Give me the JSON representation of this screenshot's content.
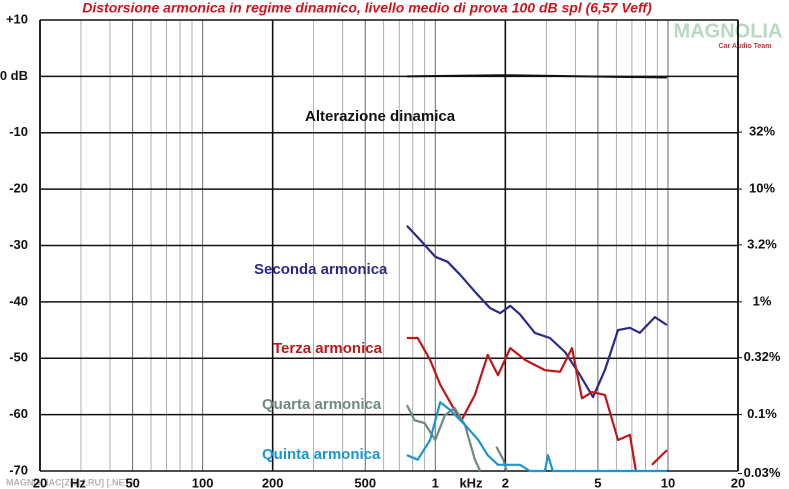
{
  "chart_data": {
    "type": "line",
    "title": "Distorsione armonica in regime dinamico, livello medio di prova 100 dB spl (6,57 Veff)",
    "logo": {
      "name": "MAGNOLIA",
      "tagline": "Car Audio Team"
    },
    "watermark": "MAGNOLIAC[ZG] [.RU] [.NET]",
    "x_units": [
      "Hz",
      "kHz"
    ],
    "xscale": "log",
    "xlim": [
      20,
      20000
    ],
    "xticks": [
      20,
      50,
      100,
      200,
      500,
      {
        "value": 1000,
        "label": "1"
      },
      {
        "value": 2000,
        "label": "2"
      },
      {
        "value": 5000,
        "label": "5"
      },
      {
        "value": 10000,
        "label": "10"
      },
      {
        "value": 20000,
        "label": "20"
      }
    ],
    "xgrid_minor": [
      30,
      40,
      60,
      70,
      80,
      90,
      300,
      400,
      600,
      700,
      800,
      900,
      3000,
      4000,
      6000,
      7000,
      8000,
      9000
    ],
    "ylim": [
      -70,
      10
    ],
    "yticks": [
      {
        "value": 10,
        "label": "+10"
      },
      {
        "value": 0,
        "label": "0 dB"
      },
      -10,
      -20,
      -30,
      -40,
      -50,
      -60,
      -70
    ],
    "y2scale": "log",
    "y2lim": [
      0.0316,
      316
    ],
    "y2ticks": [
      {
        "value": 32,
        "label": "32%"
      },
      {
        "value": 10,
        "label": "10%"
      },
      {
        "value": 3.2,
        "label": "3.2%"
      },
      {
        "value": 1,
        "label": "1%"
      },
      {
        "value": 0.32,
        "label": "0.32%"
      },
      {
        "value": 0.1,
        "label": "0.1%"
      },
      {
        "value": 0.03,
        "label": "0.03%"
      }
    ],
    "grid": true,
    "series": [
      {
        "name": "Alterazione dinamica",
        "color": "#111111",
        "x": [
          755,
          1900,
          9900
        ],
        "values": [
          0,
          0.2,
          -0.2
        ]
      },
      {
        "name": "Seconda armonica",
        "color": "#2b2a8c",
        "x": [
          755,
          860,
          1000,
          1130,
          1280,
          1480,
          1720,
          1900,
          2100,
          2310,
          2680,
          3110,
          3610,
          4190,
          4760,
          5360,
          6100,
          6860,
          7570,
          8790,
          9900
        ],
        "values": [
          -26.5,
          -29.0,
          -32.0,
          -32.9,
          -35.2,
          -38.2,
          -41.1,
          -42.0,
          -40.7,
          -42.2,
          -45.5,
          -46.4,
          -48.9,
          -53.0,
          -56.9,
          -52.1,
          -45.0,
          -44.6,
          -45.5,
          -42.7,
          -44.1
        ]
      },
      {
        "name": "Terza armonica",
        "color": "#c0161b",
        "x": [
          755,
          840,
          950,
          1050,
          1210,
          1300,
          1480,
          1680,
          1860,
          2100,
          2430,
          2960,
          3440,
          3870,
          4270,
          4710,
          5360,
          6100,
          6860,
          7280,
          8000,
          8530,
          9900
        ],
        "values": [
          -46.4,
          -46.4,
          -50.3,
          -54.7,
          -59.2,
          -60.9,
          -56.5,
          -49.4,
          -53.0,
          -48.2,
          -50.3,
          -52.1,
          -52.4,
          -48.2,
          -57.1,
          -56.0,
          -56.5,
          -64.5,
          -63.6,
          -70,
          null,
          -68.9,
          -66.3
        ]
      },
      {
        "name": "Quarta armonica",
        "color": "#6f8a80",
        "x": [
          755,
          815,
          900,
          1000,
          1100,
          1210,
          1340,
          1480,
          1560,
          1700,
          1830,
          1960,
          2030
        ],
        "values": [
          -58.3,
          -61.0,
          -61.5,
          -64.5,
          -60.1,
          -58.8,
          -61.8,
          -68.0,
          -70,
          null,
          -65.7,
          -68.0,
          -70
        ]
      },
      {
        "name": "Quinta armonica",
        "color": "#1a96d4",
        "x": [
          755,
          840,
          950,
          1050,
          1160,
          1340,
          1530,
          1680,
          1860,
          2100,
          2310,
          2550,
          2960,
          3050,
          3200,
          5100,
          9900
        ],
        "values": [
          -67.2,
          -68.0,
          -64.5,
          -57.8,
          -59.2,
          -61.8,
          -64.5,
          -67.2,
          -68.9,
          -68.9,
          -68.9,
          -70,
          -70,
          -67.2,
          -70,
          -70,
          -70
        ]
      }
    ]
  }
}
